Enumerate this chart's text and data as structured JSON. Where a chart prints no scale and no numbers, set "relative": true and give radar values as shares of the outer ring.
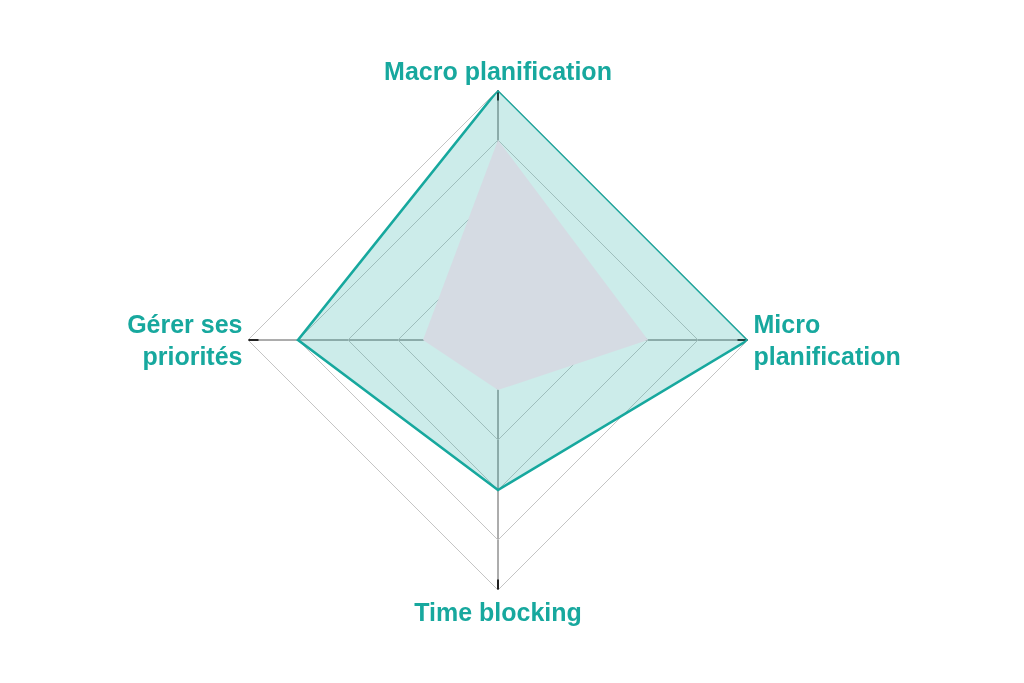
{
  "chart_data": {
    "type": "radar",
    "relative": true,
    "grid": true,
    "categories": [
      "Macro planification",
      "Micro planification",
      "Time blocking",
      "Gérer ses priorités"
    ],
    "series": [
      {
        "color": "#17a89e",
        "values": [
          1,
          1,
          0.6,
          0.8
        ]
      },
      {
        "color": "#d5dbe3",
        "values": [
          0.8,
          0.6,
          0.2,
          0.3
        ]
      }
    ]
  }
}
